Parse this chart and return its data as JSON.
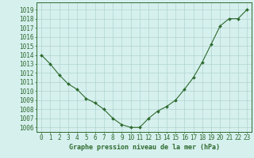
{
  "x": [
    0,
    1,
    2,
    3,
    4,
    5,
    6,
    7,
    8,
    9,
    10,
    11,
    12,
    13,
    14,
    15,
    16,
    17,
    18,
    19,
    20,
    21,
    22,
    23
  ],
  "y": [
    1014,
    1013,
    1011.8,
    1010.8,
    1010.2,
    1009.2,
    1008.7,
    1008.0,
    1007.0,
    1006.3,
    1006.0,
    1006.0,
    1007.0,
    1007.8,
    1008.3,
    1009.0,
    1010.2,
    1011.5,
    1013.2,
    1015.2,
    1017.2,
    1018.0,
    1018.0,
    1019.0
  ],
  "line_color": "#2d6a2d",
  "marker_color": "#2d6a2d",
  "bg_color": "#d6f0ee",
  "grid_color": "#b0d4d0",
  "ylabel_ticks": [
    1006,
    1007,
    1008,
    1009,
    1010,
    1011,
    1012,
    1013,
    1014,
    1015,
    1016,
    1017,
    1018,
    1019
  ],
  "xlabel_label": "Graphe pression niveau de la mer (hPa)",
  "ylim": [
    1005.5,
    1019.8
  ],
  "xlim": [
    -0.5,
    23.5
  ],
  "title_color": "#2d6a2d",
  "xlabel_fontsize": 6.0,
  "tick_fontsize": 5.5
}
